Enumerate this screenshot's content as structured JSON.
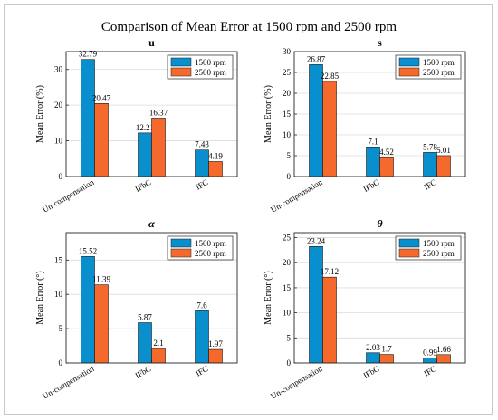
{
  "figure": {
    "title": "Comparison of Mean Error at 1500 rpm and 2500 rpm",
    "colors": {
      "s1500": "#0a8fce",
      "s2500": "#f56a2c"
    }
  },
  "chart_data": [
    {
      "type": "bar",
      "title": "u",
      "ylabel": "Mean Error (%)",
      "categories": [
        "Un-compensation",
        "IFbC",
        "IFC"
      ],
      "ylim": [
        0,
        35
      ],
      "yticks": [
        0,
        10,
        20,
        30
      ],
      "grid": true,
      "legend": "top-right",
      "series": [
        {
          "name": "1500 rpm",
          "values": [
            32.79,
            12.21,
            7.43
          ],
          "labels": [
            "32.79",
            "12.21",
            "7.43"
          ]
        },
        {
          "name": "2500 rpm",
          "values": [
            20.47,
            16.37,
            4.19
          ],
          "labels": [
            "20.47",
            "16.37",
            "4.19"
          ]
        }
      ]
    },
    {
      "type": "bar",
      "title": "s",
      "ylabel": "Mean Error (%)",
      "categories": [
        "Un-compensation",
        "IFbC",
        "IFC"
      ],
      "ylim": [
        0,
        30
      ],
      "yticks": [
        0,
        5,
        10,
        15,
        20,
        25,
        30
      ],
      "grid": true,
      "legend": "top-right",
      "series": [
        {
          "name": "1500 rpm",
          "values": [
            26.87,
            7.1,
            5.78
          ],
          "labels": [
            "26.87",
            "7.1",
            "5.78"
          ]
        },
        {
          "name": "2500 rpm",
          "values": [
            22.85,
            4.52,
            5.01
          ],
          "labels": [
            "22.85",
            "4.52",
            "5.01"
          ]
        }
      ]
    },
    {
      "type": "bar",
      "title": "α",
      "ylabel": "Mean Error (°)",
      "categories": [
        "Un-compensation",
        "IFbC",
        "IFC"
      ],
      "ylim": [
        0,
        19
      ],
      "yticks": [
        0,
        5,
        10,
        15
      ],
      "grid": true,
      "legend": "top-right",
      "series": [
        {
          "name": "1500 rpm",
          "values": [
            15.52,
            5.87,
            7.6
          ],
          "labels": [
            "15.52",
            "5.87",
            "7.6"
          ]
        },
        {
          "name": "2500 rpm",
          "values": [
            11.39,
            2.1,
            1.97
          ],
          "labels": [
            "11.39",
            "2.1",
            "1.97"
          ]
        }
      ]
    },
    {
      "type": "bar",
      "title": "θ",
      "ylabel": "Mean Error (°)",
      "categories": [
        "Un-compensation",
        "IFbC",
        "IFC"
      ],
      "ylim": [
        0,
        26
      ],
      "yticks": [
        0,
        5,
        10,
        15,
        20,
        25
      ],
      "grid": true,
      "legend": "top-right",
      "series": [
        {
          "name": "1500 rpm",
          "values": [
            23.24,
            2.03,
            0.99
          ],
          "labels": [
            "23.24",
            "2.03",
            "0.99"
          ]
        },
        {
          "name": "2500 rpm",
          "values": [
            17.12,
            1.7,
            1.66
          ],
          "labels": [
            "17.12",
            "1.7",
            "1.66"
          ]
        }
      ]
    }
  ]
}
